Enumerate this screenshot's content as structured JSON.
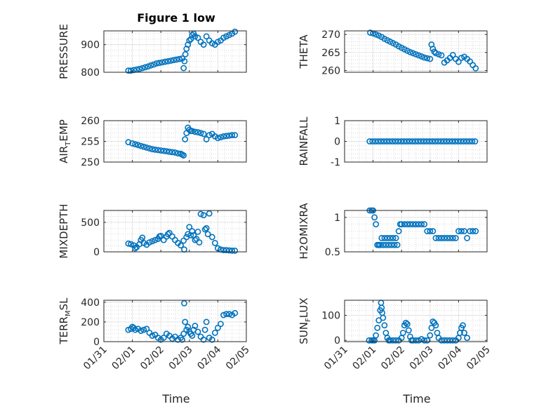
{
  "figure": {
    "title": "Figure 1 low",
    "xlabel": "Time",
    "marker_color": "#0072BD"
  },
  "chart_data": [
    {
      "type": "scatter",
      "ylabel_main": "PRESSURE",
      "ylabel_sub": "",
      "ylabel_tail": "",
      "xlim": [
        "01/31",
        "02/05"
      ],
      "xticks": [
        "01/31",
        "02/01",
        "02/02",
        "02/03",
        "02/04",
        "02/05"
      ],
      "ylim": [
        800,
        950
      ],
      "yticks": [
        800,
        900
      ],
      "series": [
        {
          "x": [
            0.86,
            0.95,
            1.05,
            1.15,
            1.25,
            1.35,
            1.45,
            1.55,
            1.65,
            1.75,
            1.85,
            1.95,
            2.05,
            2.15,
            2.25,
            2.35,
            2.45,
            2.55,
            2.65,
            2.75,
            2.8,
            2.83,
            2.86,
            2.9,
            2.95,
            3.0,
            3.05,
            3.1,
            3.15,
            3.2,
            3.3,
            3.4,
            3.5,
            3.6,
            3.7,
            3.8,
            3.9,
            4.0,
            4.1,
            4.2,
            4.3,
            4.4,
            4.5,
            4.6
          ],
          "y": [
            806,
            806,
            808,
            810,
            812,
            815,
            818,
            821,
            825,
            828,
            832,
            834,
            836,
            838,
            840,
            842,
            844,
            846,
            848,
            850,
            815,
            840,
            865,
            885,
            900,
            915,
            920,
            935,
            940,
            930,
            925,
            910,
            900,
            930,
            915,
            905,
            900,
            910,
            915,
            925,
            930,
            935,
            940,
            947
          ]
        }
      ]
    },
    {
      "type": "scatter",
      "ylabel_main": "THETA",
      "ylabel_sub": "",
      "ylabel_tail": "",
      "xlim": [
        "01/31",
        "02/05"
      ],
      "xticks": [
        "01/31",
        "02/01",
        "02/02",
        "02/03",
        "02/04",
        "02/05"
      ],
      "ylim": [
        259.5,
        271
      ],
      "yticks": [
        260,
        265,
        270
      ],
      "series": [
        {
          "x": [
            0.9,
            1.0,
            1.1,
            1.2,
            1.3,
            1.4,
            1.5,
            1.6,
            1.7,
            1.8,
            1.9,
            2.0,
            2.1,
            2.2,
            2.3,
            2.4,
            2.5,
            2.6,
            2.7,
            2.8,
            2.9,
            3.0,
            3.05,
            3.1,
            3.15,
            3.2,
            3.3,
            3.4,
            3.5,
            3.6,
            3.7,
            3.8,
            3.9,
            4.0,
            4.1,
            4.2,
            4.3,
            4.4,
            4.5,
            4.6
          ],
          "y": [
            270.5,
            270.3,
            270,
            269.7,
            269.3,
            268.8,
            268.4,
            268,
            267.6,
            267.2,
            266.7,
            266.3,
            265.9,
            265.5,
            265.1,
            264.8,
            264.5,
            264.2,
            263.9,
            263.6,
            263.4,
            263.2,
            267.2,
            266,
            265.2,
            264.8,
            264.5,
            264.2,
            262.2,
            262.8,
            263.5,
            264.3,
            263.2,
            262.4,
            263.5,
            263.8,
            263.2,
            262.5,
            261.5,
            260.6
          ]
        }
      ]
    },
    {
      "type": "scatter",
      "ylabel_main": "AIR",
      "ylabel_sub": "T",
      "ylabel_tail": "EMP",
      "xlim": [
        "01/31",
        "02/05"
      ],
      "xticks": [
        "01/31",
        "02/01",
        "02/02",
        "02/03",
        "02/04",
        "02/05"
      ],
      "ylim": [
        250,
        260
      ],
      "yticks": [
        250,
        255,
        260
      ],
      "series": [
        {
          "x": [
            0.86,
            1.0,
            1.1,
            1.2,
            1.3,
            1.4,
            1.5,
            1.6,
            1.7,
            1.8,
            1.9,
            2.0,
            2.1,
            2.2,
            2.3,
            2.4,
            2.5,
            2.6,
            2.7,
            2.75,
            2.8,
            2.85,
            2.9,
            2.95,
            3.0,
            3.05,
            3.1,
            3.2,
            3.3,
            3.4,
            3.5,
            3.6,
            3.7,
            3.8,
            3.9,
            4.0,
            4.1,
            4.2,
            4.3,
            4.4,
            4.5,
            4.6
          ],
          "y": [
            254.8,
            254.5,
            254.3,
            254.1,
            253.9,
            253.7,
            253.5,
            253.3,
            253.1,
            253.0,
            252.9,
            252.8,
            252.7,
            252.6,
            252.5,
            252.4,
            252.3,
            252.1,
            252.0,
            251.8,
            251.6,
            255.5,
            257,
            258.3,
            257.8,
            257.5,
            257.5,
            257.3,
            257.2,
            257.0,
            256.8,
            255.5,
            256.5,
            256.8,
            256.2,
            255.8,
            256.0,
            256.2,
            256.3,
            256.4,
            256.5,
            256.5
          ]
        }
      ]
    },
    {
      "type": "scatter",
      "ylabel_main": "RAINFALL",
      "ylabel_sub": "",
      "ylabel_tail": "",
      "xlim": [
        "01/31",
        "02/05"
      ],
      "xticks": [
        "01/31",
        "02/01",
        "02/02",
        "02/03",
        "02/04",
        "02/05"
      ],
      "ylim": [
        -1,
        1
      ],
      "yticks": [
        -1,
        0,
        1
      ],
      "series": [
        {
          "x": [
            0.88,
            0.98,
            1.08,
            1.18,
            1.28,
            1.38,
            1.48,
            1.58,
            1.68,
            1.78,
            1.88,
            1.98,
            2.08,
            2.18,
            2.28,
            2.38,
            2.48,
            2.58,
            2.68,
            2.78,
            2.88,
            2.98,
            3.08,
            3.18,
            3.28,
            3.38,
            3.48,
            3.58,
            3.68,
            3.78,
            3.88,
            3.98,
            4.08,
            4.18,
            4.28,
            4.38,
            4.48,
            4.58
          ],
          "y": [
            0,
            0,
            0,
            0,
            0,
            0,
            0,
            0,
            0,
            0,
            0,
            0,
            0,
            0,
            0,
            0,
            0,
            0,
            0,
            0,
            0,
            0,
            0,
            0,
            0,
            0,
            0,
            0,
            0,
            0,
            0,
            0,
            0,
            0,
            0,
            0,
            0,
            0
          ]
        }
      ]
    },
    {
      "type": "scatter",
      "ylabel_main": "MIXDEPTH",
      "ylabel_sub": "",
      "ylabel_tail": "",
      "xlim": [
        "01/31",
        "02/05"
      ],
      "xticks": [
        "01/31",
        "02/01",
        "02/02",
        "02/03",
        "02/04",
        "02/05"
      ],
      "ylim": [
        0,
        700
      ],
      "yticks": [
        0,
        500
      ],
      "series": [
        {
          "x": [
            0.86,
            0.95,
            1.05,
            1.1,
            1.15,
            1.25,
            1.3,
            1.35,
            1.4,
            1.5,
            1.6,
            1.7,
            1.8,
            1.9,
            1.95,
            2.0,
            2.1,
            2.2,
            2.25,
            2.3,
            2.4,
            2.5,
            2.6,
            2.7,
            2.8,
            2.82,
            2.9,
            2.95,
            3.0,
            3.05,
            3.1,
            3.15,
            3.2,
            3.25,
            3.3,
            3.35,
            3.4,
            3.5,
            3.55,
            3.6,
            3.65,
            3.7,
            3.8,
            3.9,
            4.0,
            4.1,
            4.2,
            4.3,
            4.4,
            4.5,
            4.6
          ],
          "y": [
            140,
            130,
            110,
            60,
            80,
            130,
            200,
            240,
            150,
            120,
            160,
            180,
            200,
            220,
            260,
            270,
            200,
            260,
            300,
            320,
            260,
            200,
            150,
            110,
            190,
            40,
            250,
            300,
            420,
            280,
            350,
            280,
            200,
            220,
            340,
            160,
            640,
            620,
            380,
            400,
            300,
            650,
            250,
            150,
            60,
            40,
            30,
            30,
            25,
            20,
            20
          ]
        }
      ]
    },
    {
      "type": "scatter",
      "ylabel_main": "H2OMIXRA",
      "ylabel_sub": "",
      "ylabel_tail": "",
      "xlim": [
        "01/31",
        "02/05"
      ],
      "xticks": [
        "01/31",
        "02/01",
        "02/02",
        "02/03",
        "02/04",
        "02/05"
      ],
      "ylim": [
        0.5,
        1.1
      ],
      "yticks": [
        0.5,
        1
      ],
      "series": [
        {
          "x": [
            0.88,
            0.95,
            1.0,
            1.05,
            1.1,
            1.15,
            1.2,
            1.25,
            1.3,
            1.35,
            1.4,
            1.45,
            1.5,
            1.55,
            1.6,
            1.65,
            1.7,
            1.75,
            1.8,
            1.85,
            1.9,
            1.95,
            2.0,
            2.1,
            2.2,
            2.3,
            2.4,
            2.5,
            2.6,
            2.7,
            2.8,
            2.9,
            3.0,
            3.1,
            3.2,
            3.3,
            3.4,
            3.5,
            3.6,
            3.7,
            3.8,
            3.9,
            4.0,
            4.1,
            4.2,
            4.3,
            4.4,
            4.5,
            4.6
          ],
          "y": [
            1.1,
            1.1,
            1.1,
            1.0,
            0.9,
            0.6,
            0.6,
            0.6,
            0.7,
            0.6,
            0.7,
            0.6,
            0.7,
            0.6,
            0.7,
            0.6,
            0.7,
            0.6,
            0.7,
            0.6,
            0.8,
            0.9,
            0.9,
            0.9,
            0.9,
            0.9,
            0.9,
            0.9,
            0.9,
            0.9,
            0.9,
            0.8,
            0.8,
            0.8,
            0.7,
            0.7,
            0.7,
            0.7,
            0.7,
            0.7,
            0.7,
            0.7,
            0.8,
            0.8,
            0.8,
            0.7,
            0.8,
            0.8,
            0.8
          ]
        }
      ]
    },
    {
      "type": "scatter",
      "ylabel_main": "TERR",
      "ylabel_sub": "M",
      "ylabel_tail": "SL",
      "xlim": [
        "01/31",
        "02/05"
      ],
      "xticks": [
        "01/31",
        "02/01",
        "02/02",
        "02/03",
        "02/04",
        "02/05"
      ],
      "ylim": [
        0,
        420
      ],
      "yticks": [
        0,
        200,
        400
      ],
      "series": [
        {
          "x": [
            0.86,
            0.95,
            1.0,
            1.05,
            1.1,
            1.2,
            1.3,
            1.4,
            1.5,
            1.6,
            1.7,
            1.8,
            1.9,
            2.0,
            2.1,
            2.2,
            2.3,
            2.4,
            2.5,
            2.6,
            2.7,
            2.75,
            2.8,
            2.82,
            2.85,
            2.9,
            2.95,
            3.0,
            3.05,
            3.1,
            3.15,
            3.2,
            3.3,
            3.4,
            3.5,
            3.55,
            3.6,
            3.7,
            3.8,
            3.9,
            4.0,
            4.1,
            4.2,
            4.3,
            4.4,
            4.5,
            4.6
          ],
          "y": [
            120,
            130,
            150,
            140,
            120,
            130,
            110,
            120,
            130,
            90,
            60,
            70,
            40,
            20,
            40,
            80,
            60,
            30,
            50,
            20,
            40,
            20,
            80,
            390,
            200,
            120,
            150,
            100,
            80,
            60,
            120,
            160,
            100,
            50,
            20,
            120,
            200,
            40,
            20,
            90,
            140,
            180,
            270,
            280,
            280,
            270,
            290
          ]
        }
      ]
    },
    {
      "type": "scatter",
      "ylabel_main": "SUN",
      "ylabel_sub": "F",
      "ylabel_tail": "LUX",
      "xlim": [
        "01/31",
        "02/05"
      ],
      "xticks": [
        "01/31",
        "02/01",
        "02/02",
        "02/03",
        "02/04",
        "02/05"
      ],
      "ylim": [
        -5,
        160
      ],
      "yticks": [
        0,
        100
      ],
      "series": [
        {
          "x": [
            0.86,
            0.95,
            1.0,
            1.05,
            1.1,
            1.15,
            1.2,
            1.25,
            1.28,
            1.3,
            1.32,
            1.35,
            1.4,
            1.45,
            1.5,
            1.55,
            1.6,
            1.7,
            1.8,
            1.9,
            2.0,
            2.05,
            2.1,
            2.15,
            2.2,
            2.25,
            2.3,
            2.35,
            2.4,
            2.5,
            2.6,
            2.7,
            2.8,
            2.9,
            3.0,
            3.05,
            3.1,
            3.15,
            3.2,
            3.25,
            3.3,
            3.4,
            3.5,
            3.6,
            3.7,
            3.8,
            3.9,
            4.0,
            4.05,
            4.1,
            4.15,
            4.2,
            4.3
          ],
          "y": [
            0,
            0,
            0,
            0,
            20,
            50,
            80,
            120,
            150,
            130,
            110,
            90,
            60,
            30,
            10,
            0,
            0,
            0,
            0,
            0,
            10,
            30,
            60,
            70,
            65,
            40,
            15,
            0,
            0,
            0,
            0,
            5,
            0,
            0,
            20,
            50,
            75,
            70,
            60,
            30,
            10,
            0,
            0,
            0,
            0,
            0,
            0,
            10,
            30,
            50,
            60,
            30,
            10
          ]
        }
      ]
    }
  ]
}
